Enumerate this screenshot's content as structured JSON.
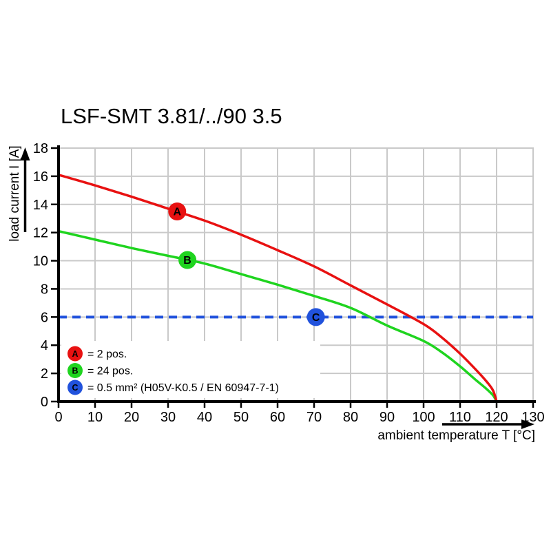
{
  "chart_data": {
    "type": "line",
    "title": "LSF-SMT 3.81/../90 3.5",
    "xlabel": "ambient temperature T [°C]",
    "ylabel": "load current I [A]",
    "xlim": [
      0,
      130
    ],
    "ylim": [
      0,
      18
    ],
    "xticks": [
      0,
      10,
      20,
      30,
      40,
      50,
      60,
      70,
      80,
      90,
      100,
      110,
      120,
      130
    ],
    "yticks": [
      0,
      2,
      4,
      6,
      8,
      10,
      12,
      14,
      16,
      18
    ],
    "grid": true,
    "grid_color": "#c9c9c9",
    "axis_color": "#000000",
    "background": "#ffffff",
    "legend_position": "inside-bottom-left",
    "series": [
      {
        "id": "A",
        "label": "A",
        "name": "2 pos.",
        "legend_text": "= 2 pos.",
        "color": "#e81111",
        "style": "solid",
        "marker": {
          "x": 32.5,
          "y": 13.5
        },
        "points": [
          [
            0,
            16.1
          ],
          [
            10,
            15.35
          ],
          [
            20,
            14.55
          ],
          [
            30,
            13.7
          ],
          [
            40,
            12.85
          ],
          [
            50,
            11.85
          ],
          [
            60,
            10.75
          ],
          [
            70,
            9.6
          ],
          [
            80,
            8.25
          ],
          [
            90,
            6.9
          ],
          [
            100,
            5.5
          ],
          [
            105,
            4.55
          ],
          [
            110,
            3.4
          ],
          [
            114,
            2.35
          ],
          [
            117,
            1.5
          ],
          [
            119,
            0.8
          ],
          [
            120,
            0
          ]
        ]
      },
      {
        "id": "B",
        "label": "B",
        "name": "24 pos.",
        "legend_text": "= 24 pos.",
        "color": "#1fd41f",
        "style": "solid",
        "marker": {
          "x": 35.3,
          "y": 10.05
        },
        "points": [
          [
            0,
            12.1
          ],
          [
            10,
            11.5
          ],
          [
            20,
            10.9
          ],
          [
            30,
            10.35
          ],
          [
            40,
            9.8
          ],
          [
            50,
            9.05
          ],
          [
            60,
            8.3
          ],
          [
            70,
            7.5
          ],
          [
            80,
            6.65
          ],
          [
            90,
            5.4
          ],
          [
            100,
            4.3
          ],
          [
            105,
            3.5
          ],
          [
            110,
            2.5
          ],
          [
            114,
            1.6
          ],
          [
            117,
            0.95
          ],
          [
            119,
            0.45
          ],
          [
            120,
            0
          ]
        ]
      },
      {
        "id": "C",
        "label": "C",
        "name": "0.5 mm² (H05V-K0.5 / EN 60947-7-1)",
        "legend_text": "= 0.5 mm² (H05V-K0.5 / EN 60947-7-1)",
        "color": "#2152dc",
        "style": "dashed",
        "marker": {
          "x": 70.5,
          "y": 6
        },
        "points": [
          [
            0,
            6
          ],
          [
            130,
            6
          ]
        ]
      }
    ]
  }
}
